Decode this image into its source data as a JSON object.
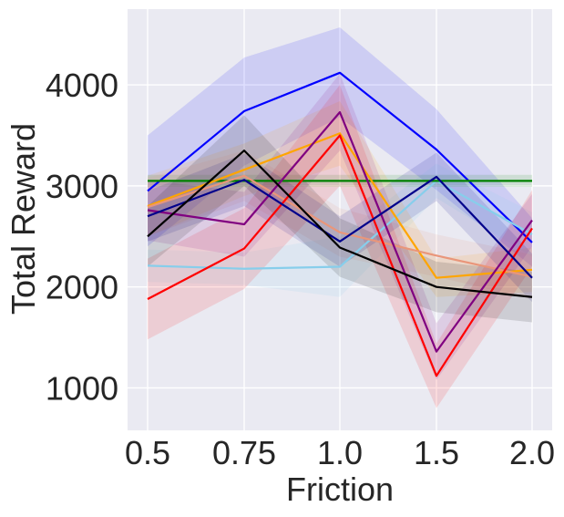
{
  "chart_data": {
    "type": "line",
    "xlabel": "Friction",
    "ylabel": "Total Reward",
    "x_categories": [
      "0.5",
      "0.75",
      "1.0",
      "1.5",
      "2.0"
    ],
    "y_ticks": [
      1000,
      2000,
      3000,
      4000
    ],
    "ylim": [
      580,
      4750
    ],
    "grid": true,
    "legend": "none",
    "background_color": "#eaeaf2",
    "series": [
      {
        "color": "#0000ff",
        "values": [
          2950,
          3740,
          4120,
          3360,
          2440
        ],
        "band": [
          [
            2400,
            3500
          ],
          [
            3200,
            4270
          ],
          [
            3680,
            4570
          ],
          [
            2960,
            3760
          ],
          [
            2200,
            2680
          ]
        ]
      },
      {
        "color": "#87ceeb",
        "values": [
          2210,
          2180,
          2200,
          3050,
          2520
        ],
        "band": [
          [
            2050,
            2370
          ],
          [
            2020,
            2340
          ],
          [
            1900,
            2500
          ],
          [
            2880,
            3220
          ],
          [
            2300,
            2740
          ]
        ]
      },
      {
        "color": "#008000",
        "values": [
          3050,
          3050,
          3050,
          3050,
          3050
        ],
        "band": [
          [
            2990,
            3110
          ],
          [
            2990,
            3110
          ],
          [
            2990,
            3110
          ],
          [
            2990,
            3110
          ],
          [
            2990,
            3110
          ]
        ]
      },
      {
        "color": "#ffa500",
        "values": [
          2800,
          3160,
          3520,
          2090,
          2170
        ],
        "band": [
          [
            2500,
            3100
          ],
          [
            2900,
            3420
          ],
          [
            3200,
            3840
          ],
          [
            1900,
            2280
          ],
          [
            1950,
            2390
          ]
        ]
      },
      {
        "color": "#e9967a",
        "values": [
          2790,
          3100,
          2540,
          2310,
          2100
        ],
        "band": [
          [
            2500,
            3080
          ],
          [
            2850,
            3350
          ],
          [
            2300,
            2780
          ],
          [
            2100,
            2520
          ],
          [
            1880,
            2320
          ]
        ]
      },
      {
        "color": "#ff0000",
        "values": [
          1880,
          2380,
          3500,
          1120,
          2580
        ],
        "band": [
          [
            1480,
            2280
          ],
          [
            1980,
            2780
          ],
          [
            3000,
            4000
          ],
          [
            800,
            1440
          ],
          [
            2200,
            2960
          ]
        ]
      },
      {
        "color": "#800080",
        "values": [
          2760,
          2620,
          3730,
          1360,
          2660
        ],
        "band": [
          [
            2460,
            3060
          ],
          [
            2300,
            2940
          ],
          [
            3350,
            4110
          ],
          [
            1080,
            1640
          ],
          [
            2400,
            2920
          ]
        ]
      },
      {
        "color": "#00008b",
        "values": [
          2700,
          3060,
          2450,
          3090,
          2090
        ],
        "band": [
          [
            2450,
            2950
          ],
          [
            2800,
            3320
          ],
          [
            2200,
            2700
          ],
          [
            2850,
            3330
          ],
          [
            1850,
            2330
          ]
        ]
      },
      {
        "color": "#000000",
        "values": [
          2500,
          3350,
          2390,
          2000,
          1900
        ],
        "band": [
          [
            2200,
            2800
          ],
          [
            3000,
            3700
          ],
          [
            2100,
            2680
          ],
          [
            1750,
            2250
          ],
          [
            1650,
            2150
          ]
        ]
      }
    ]
  }
}
